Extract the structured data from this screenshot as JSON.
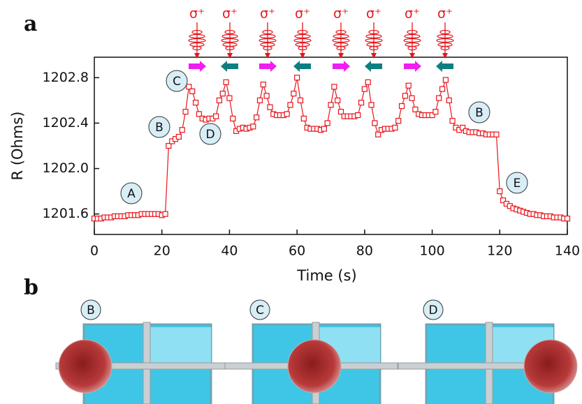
{
  "chart_data": {
    "type": "line",
    "panel_label": "a",
    "x_label": "Time (s)",
    "y_label": "R (Ohms)",
    "color": "#e8141b",
    "x": [
      0,
      1,
      2,
      3,
      4,
      5,
      6,
      7,
      8,
      9,
      10,
      11,
      12,
      13,
      14,
      15,
      16,
      17,
      18,
      19,
      20,
      21,
      22,
      23,
      24,
      25,
      26,
      27,
      28,
      29,
      30,
      31,
      32,
      33,
      34,
      35,
      36,
      37,
      38,
      39,
      40,
      41,
      42,
      43,
      44,
      45,
      46,
      47,
      48,
      49,
      50,
      51,
      52,
      53,
      54,
      55,
      56,
      57,
      58,
      59,
      60,
      61,
      62,
      63,
      64,
      65,
      66,
      67,
      68,
      69,
      70,
      71,
      72,
      73,
      74,
      75,
      76,
      77,
      78,
      79,
      80,
      81,
      82,
      83,
      84,
      85,
      86,
      87,
      88,
      89,
      90,
      91,
      92,
      93,
      94,
      95,
      96,
      97,
      98,
      99,
      100,
      101,
      102,
      103,
      104,
      105,
      106,
      107,
      108,
      109,
      110,
      111,
      112,
      113,
      114,
      115,
      116,
      117,
      118,
      119,
      120,
      121,
      122,
      123,
      124,
      125,
      126,
      127,
      128,
      129,
      130,
      131,
      132,
      133,
      134,
      135,
      136,
      137,
      138,
      139,
      140
    ],
    "values": [
      1201.56,
      1201.56,
      1201.56,
      1201.57,
      1201.57,
      1201.57,
      1201.58,
      1201.58,
      1201.58,
      1201.58,
      1201.59,
      1201.59,
      1201.59,
      1201.59,
      1201.6,
      1201.6,
      1201.6,
      1201.6,
      1201.6,
      1201.6,
      1201.59,
      1201.6,
      1202.2,
      1202.24,
      1202.26,
      1202.28,
      1202.34,
      1202.5,
      1202.72,
      1202.68,
      1202.58,
      1202.48,
      1202.44,
      1202.43,
      1202.44,
      1202.44,
      1202.46,
      1202.6,
      1202.66,
      1202.76,
      1202.62,
      1202.44,
      1202.33,
      1202.35,
      1202.36,
      1202.35,
      1202.36,
      1202.37,
      1202.45,
      1202.6,
      1202.74,
      1202.64,
      1202.54,
      1202.48,
      1202.47,
      1202.47,
      1202.47,
      1202.48,
      1202.56,
      1202.66,
      1202.8,
      1202.6,
      1202.44,
      1202.36,
      1202.35,
      1202.35,
      1202.35,
      1202.34,
      1202.35,
      1202.4,
      1202.56,
      1202.72,
      1202.6,
      1202.5,
      1202.46,
      1202.46,
      1202.46,
      1202.46,
      1202.47,
      1202.58,
      1202.7,
      1202.76,
      1202.56,
      1202.4,
      1202.3,
      1202.34,
      1202.35,
      1202.35,
      1202.35,
      1202.36,
      1202.42,
      1202.55,
      1202.64,
      1202.73,
      1202.62,
      1202.52,
      1202.48,
      1202.47,
      1202.47,
      1202.47,
      1202.47,
      1202.5,
      1202.62,
      1202.7,
      1202.78,
      1202.6,
      1202.42,
      1202.36,
      1202.34,
      1202.36,
      1202.33,
      1202.32,
      1202.32,
      1202.32,
      1202.31,
      1202.31,
      1202.3,
      1202.3,
      1202.3,
      1202.3,
      1201.8,
      1201.72,
      1201.69,
      1201.67,
      1201.65,
      1201.64,
      1201.63,
      1201.62,
      1201.61,
      1201.6,
      1201.6,
      1201.59,
      1201.59,
      1201.58,
      1201.58,
      1201.58,
      1201.57,
      1201.57,
      1201.57,
      1201.56,
      1201.56
    ],
    "xlim": [
      0,
      140
    ],
    "xticks": [
      0,
      20,
      40,
      60,
      80,
      100,
      120,
      140
    ],
    "ylim": [
      1201.42,
      1202.98
    ],
    "yticks": [
      1201.6,
      {
        "value": 1202,
        "label": "1202.0"
      },
      1202.4,
      1202.8
    ],
    "annotations": [
      "A",
      "B",
      "C",
      "D",
      "B",
      "E"
    ],
    "pulse_labels": [
      "σ⁺",
      "σ⁺",
      "σ⁺",
      "σ⁺",
      "σ⁺",
      "σ⁺",
      "σ⁺",
      "σ⁺"
    ],
    "arrow_colors": [
      "#f01ef0",
      "#0e7f80"
    ]
  },
  "panel_b": {
    "label": "b",
    "diagrams": [
      "B",
      "C",
      "D"
    ]
  }
}
